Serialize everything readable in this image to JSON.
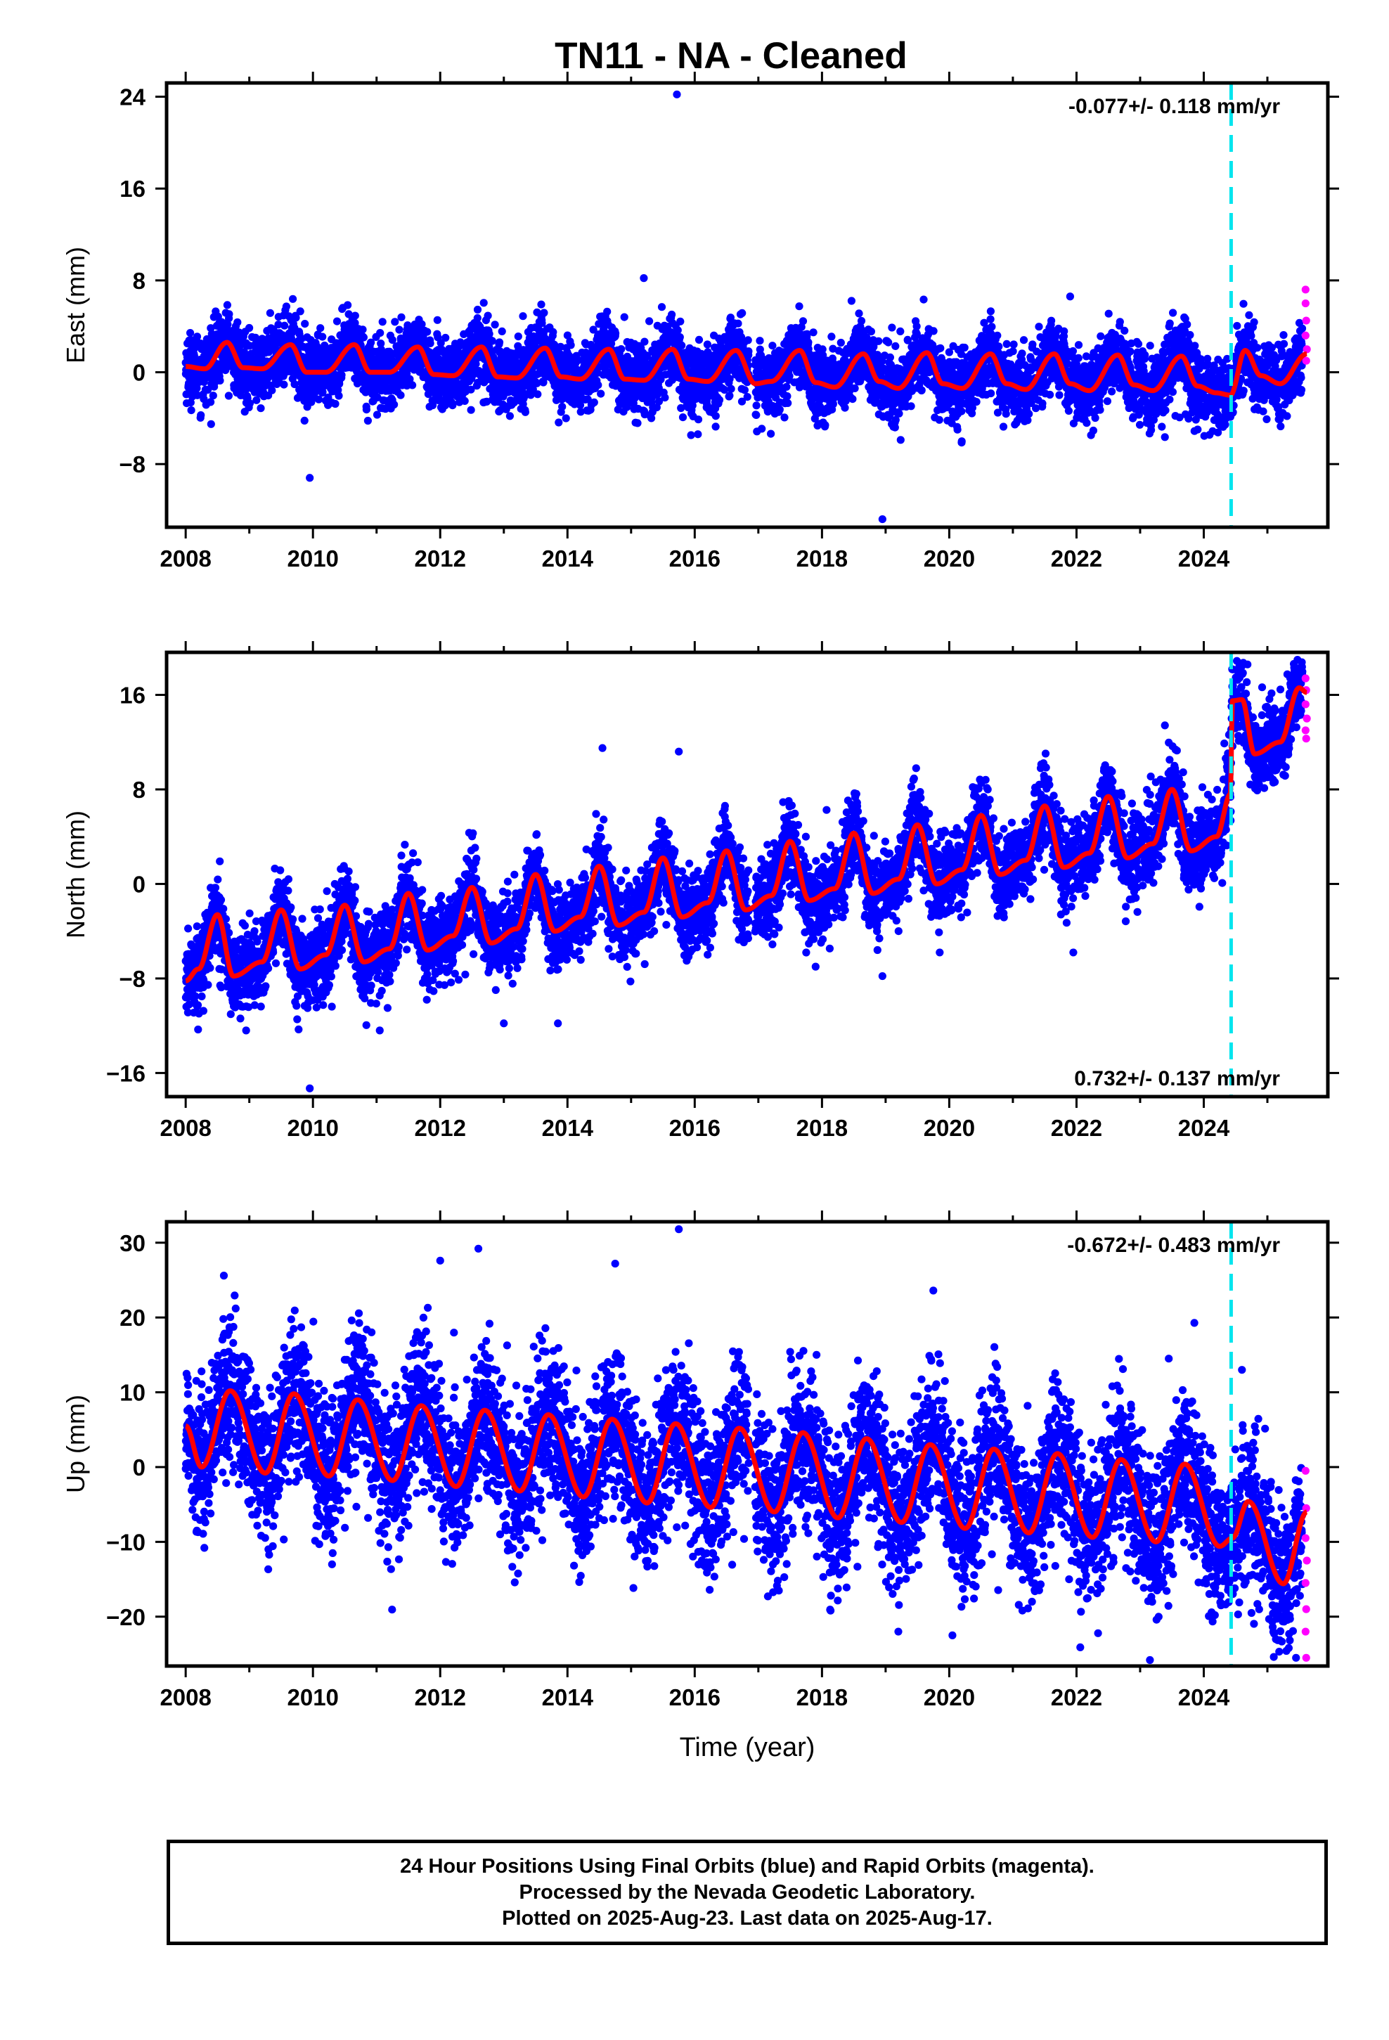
{
  "page": {
    "title": "TN11  - NA - Cleaned"
  },
  "colors": {
    "final_orbits": "#0000ff",
    "rapid_orbits": "#ff00ff",
    "model_fit": "#ff0000",
    "event_line": "#00e5ee",
    "frame": "#000000"
  },
  "footer": {
    "line1": "24 Hour Positions Using Final Orbits (blue) and Rapid Orbits (magenta).",
    "line2": "Processed by the Nevada Geodetic Laboratory.",
    "line3": "Plotted on 2025-Aug-23. Last data on 2025-Aug-17."
  },
  "chart_data": [
    {
      "type": "scatter",
      "ylabel": "East (mm)",
      "xlabel": "",
      "xlim": [
        2007.7,
        2025.95
      ],
      "ylim": [
        -13.5,
        25.2
      ],
      "x_ticks": [
        2008,
        2010,
        2012,
        2014,
        2016,
        2018,
        2020,
        2022,
        2024
      ],
      "y_ticks": [
        -8,
        0,
        8,
        16,
        24
      ],
      "y_tick_labels": [
        "−8",
        "0",
        "8",
        "16",
        "24"
      ],
      "x_minor_tick_step": 1,
      "grid": false,
      "velocity_label": "-0.077+/- 0.118 mm/yr",
      "velocity_label_position": "top-right",
      "event_line_x": 2024.43,
      "data_span": [
        2008.0,
        2025.62
      ],
      "rapid_orbits_start": 2025.55,
      "series": [
        {
          "role": "model_fit",
          "seasonal": [
            [
              2008.0,
              0.5
            ],
            [
              2008.3,
              0.3
            ],
            [
              2008.65,
              2.6
            ],
            [
              2008.9,
              0.4
            ],
            [
              2009.2,
              0.3
            ],
            [
              2009.65,
              2.4
            ],
            [
              2009.9,
              0.0
            ],
            [
              2010.2,
              0.0
            ],
            [
              2010.65,
              2.4
            ],
            [
              2010.9,
              0.0
            ],
            [
              2011.2,
              0.0
            ],
            [
              2011.65,
              2.2
            ],
            [
              2011.9,
              -0.2
            ],
            [
              2012.2,
              -0.3
            ],
            [
              2012.65,
              2.2
            ],
            [
              2012.9,
              -0.4
            ],
            [
              2013.2,
              -0.5
            ],
            [
              2013.65,
              2.1
            ],
            [
              2013.9,
              -0.4
            ],
            [
              2014.2,
              -0.6
            ],
            [
              2014.65,
              2.0
            ],
            [
              2014.9,
              -0.6
            ],
            [
              2015.2,
              -0.7
            ],
            [
              2015.65,
              2.0
            ],
            [
              2015.9,
              -0.6
            ],
            [
              2016.2,
              -0.8
            ],
            [
              2016.65,
              1.9
            ],
            [
              2016.95,
              -1.0
            ],
            [
              2017.2,
              -0.8
            ],
            [
              2017.65,
              1.9
            ],
            [
              2017.9,
              -0.9
            ],
            [
              2018.2,
              -1.3
            ],
            [
              2018.65,
              1.6
            ],
            [
              2018.9,
              -0.8
            ],
            [
              2019.2,
              -1.4
            ],
            [
              2019.65,
              1.7
            ],
            [
              2019.9,
              -1.0
            ],
            [
              2020.2,
              -1.4
            ],
            [
              2020.65,
              1.6
            ],
            [
              2020.9,
              -1.0
            ],
            [
              2021.2,
              -1.5
            ],
            [
              2021.65,
              1.6
            ],
            [
              2021.9,
              -1.0
            ],
            [
              2022.2,
              -1.6
            ],
            [
              2022.65,
              1.5
            ],
            [
              2022.9,
              -1.1
            ],
            [
              2023.2,
              -1.6
            ],
            [
              2023.65,
              1.4
            ],
            [
              2023.9,
              -1.2
            ],
            [
              2024.2,
              -1.8
            ],
            [
              2024.42,
              -2.0
            ],
            [
              2024.65,
              1.9
            ],
            [
              2024.9,
              -0.3
            ],
            [
              2025.2,
              -1.0
            ],
            [
              2025.62,
              1.6
            ]
          ]
        },
        {
          "role": "final_orbits",
          "scatter_amplitude": 1.5
        },
        {
          "role": "outliers",
          "points": [
            [
              2015.72,
              24.2
            ],
            [
              2009.95,
              -9.2
            ],
            [
              2018.95,
              -12.8
            ],
            [
              2021.9,
              6.6
            ],
            [
              2015.2,
              8.2
            ],
            [
              2016.05,
              -5.4
            ]
          ]
        },
        {
          "role": "rapid_orbits",
          "points": [
            [
              2025.6,
              7.2
            ],
            [
              2025.6,
              6.0
            ],
            [
              2025.61,
              4.5
            ],
            [
              2025.6,
              3.2
            ],
            [
              2025.62,
              2.0
            ],
            [
              2025.61,
              1.0
            ]
          ]
        }
      ]
    },
    {
      "type": "scatter",
      "ylabel": "North (mm)",
      "xlabel": "",
      "xlim": [
        2007.7,
        2025.95
      ],
      "ylim": [
        -18.0,
        19.6
      ],
      "x_ticks": [
        2008,
        2010,
        2012,
        2014,
        2016,
        2018,
        2020,
        2022,
        2024
      ],
      "y_ticks": [
        -16,
        -8,
        0,
        8,
        16
      ],
      "y_tick_labels": [
        "−16",
        "−8",
        "0",
        "8",
        "16"
      ],
      "x_minor_tick_step": 1,
      "grid": false,
      "velocity_label": "0.732+/- 0.137 mm/yr",
      "velocity_label_position": "bottom-right",
      "event_line_x": 2024.43,
      "data_span": [
        2008.0,
        2025.62
      ],
      "rapid_orbits_start": 2025.55,
      "series": [
        {
          "role": "model_fit",
          "seasonal": [
            [
              2008.0,
              -8.2
            ],
            [
              2008.2,
              -7.2
            ],
            [
              2008.5,
              -2.6
            ],
            [
              2008.75,
              -7.8
            ],
            [
              2009.2,
              -6.6
            ],
            [
              2009.5,
              -2.2
            ],
            [
              2009.8,
              -7.2
            ],
            [
              2010.2,
              -6.0
            ],
            [
              2010.5,
              -1.8
            ],
            [
              2010.8,
              -6.6
            ],
            [
              2011.2,
              -5.5
            ],
            [
              2011.5,
              -0.8
            ],
            [
              2011.8,
              -5.6
            ],
            [
              2012.2,
              -4.4
            ],
            [
              2012.5,
              -0.3
            ],
            [
              2012.8,
              -5.0
            ],
            [
              2013.2,
              -3.8
            ],
            [
              2013.5,
              0.8
            ],
            [
              2013.8,
              -4.0
            ],
            [
              2014.2,
              -2.8
            ],
            [
              2014.5,
              1.5
            ],
            [
              2014.8,
              -3.5
            ],
            [
              2015.2,
              -2.4
            ],
            [
              2015.5,
              2.2
            ],
            [
              2015.8,
              -2.8
            ],
            [
              2016.2,
              -1.6
            ],
            [
              2016.5,
              2.8
            ],
            [
              2016.8,
              -2.2
            ],
            [
              2017.2,
              -1.0
            ],
            [
              2017.5,
              3.6
            ],
            [
              2017.8,
              -1.4
            ],
            [
              2018.2,
              -0.4
            ],
            [
              2018.5,
              4.3
            ],
            [
              2018.8,
              -0.8
            ],
            [
              2019.2,
              0.4
            ],
            [
              2019.5,
              5.0
            ],
            [
              2019.8,
              0.0
            ],
            [
              2020.2,
              1.2
            ],
            [
              2020.5,
              5.8
            ],
            [
              2020.8,
              0.8
            ],
            [
              2021.2,
              2.0
            ],
            [
              2021.5,
              6.6
            ],
            [
              2021.8,
              1.4
            ],
            [
              2022.2,
              2.6
            ],
            [
              2022.5,
              7.4
            ],
            [
              2022.8,
              2.2
            ],
            [
              2023.2,
              3.4
            ],
            [
              2023.5,
              8.0
            ],
            [
              2023.8,
              2.8
            ],
            [
              2024.2,
              4.0
            ],
            [
              2024.42,
              7.6
            ],
            [
              2024.45,
              15.5
            ],
            [
              2024.6,
              15.6
            ],
            [
              2024.8,
              11.0
            ],
            [
              2025.2,
              12.0
            ],
            [
              2025.5,
              16.6
            ],
            [
              2025.62,
              16.2
            ]
          ]
        },
        {
          "role": "final_orbits",
          "scatter_amplitude": 1.7
        },
        {
          "role": "outliers",
          "points": [
            [
              2014.55,
              11.5
            ],
            [
              2015.75,
              11.2
            ],
            [
              2009.95,
              -17.3
            ],
            [
              2011.05,
              -12.4
            ],
            [
              2013.0,
              -11.8
            ],
            [
              2013.85,
              -11.8
            ],
            [
              2017.9,
              -7.0
            ],
            [
              2018.95,
              -7.8
            ],
            [
              2021.95,
              -5.8
            ],
            [
              2019.85,
              -5.8
            ],
            [
              2008.95,
              -12.4
            ]
          ]
        },
        {
          "role": "rapid_orbits",
          "points": [
            [
              2025.6,
              17.4
            ],
            [
              2025.61,
              16.4
            ],
            [
              2025.6,
              15.2
            ],
            [
              2025.62,
              14.0
            ],
            [
              2025.6,
              13.0
            ],
            [
              2025.61,
              12.3
            ]
          ]
        }
      ]
    },
    {
      "type": "scatter",
      "ylabel": "Up (mm)",
      "xlabel": "Time (year)",
      "xlim": [
        2007.7,
        2025.95
      ],
      "ylim": [
        -26.6,
        32.8
      ],
      "x_ticks": [
        2008,
        2010,
        2012,
        2014,
        2016,
        2018,
        2020,
        2022,
        2024
      ],
      "y_ticks": [
        -20,
        -10,
        0,
        10,
        20,
        30
      ],
      "y_tick_labels": [
        "−20",
        "−10",
        "0",
        "10",
        "20",
        "30"
      ],
      "x_minor_tick_step": 1,
      "grid": false,
      "velocity_label": "-0.672+/- 0.483 mm/yr",
      "velocity_label_position": "top-right",
      "event_line_x": 2024.43,
      "data_span": [
        2008.0,
        2025.62
      ],
      "rapid_orbits_start": 2025.55,
      "series": [
        {
          "role": "model_fit",
          "seasonal": [
            [
              2008.0,
              5.5
            ],
            [
              2008.25,
              0.0
            ],
            [
              2008.7,
              10.2
            ],
            [
              2009.25,
              -0.8
            ],
            [
              2009.7,
              9.8
            ],
            [
              2010.25,
              -1.2
            ],
            [
              2010.7,
              9.0
            ],
            [
              2011.25,
              -1.8
            ],
            [
              2011.7,
              8.2
            ],
            [
              2012.25,
              -2.6
            ],
            [
              2012.7,
              7.6
            ],
            [
              2013.25,
              -3.2
            ],
            [
              2013.7,
              7.0
            ],
            [
              2014.25,
              -4.0
            ],
            [
              2014.7,
              6.4
            ],
            [
              2015.25,
              -4.8
            ],
            [
              2015.7,
              5.8
            ],
            [
              2016.25,
              -5.4
            ],
            [
              2016.7,
              5.2
            ],
            [
              2017.25,
              -6.0
            ],
            [
              2017.7,
              4.6
            ],
            [
              2018.25,
              -6.8
            ],
            [
              2018.7,
              3.8
            ],
            [
              2019.25,
              -7.4
            ],
            [
              2019.7,
              3.0
            ],
            [
              2020.25,
              -8.2
            ],
            [
              2020.7,
              2.4
            ],
            [
              2021.25,
              -8.8
            ],
            [
              2021.7,
              1.8
            ],
            [
              2022.25,
              -9.4
            ],
            [
              2022.7,
              1.0
            ],
            [
              2023.25,
              -10.0
            ],
            [
              2023.7,
              0.4
            ],
            [
              2024.25,
              -10.6
            ],
            [
              2024.45,
              -9.5
            ],
            [
              2024.7,
              -4.6
            ],
            [
              2025.25,
              -15.6
            ],
            [
              2025.62,
              -6.0
            ]
          ]
        },
        {
          "role": "final_orbits",
          "scatter_amplitude": 5.0
        },
        {
          "role": "outliers",
          "points": [
            [
              2015.75,
              31.8
            ],
            [
              2012.0,
              27.6
            ],
            [
              2012.6,
              29.2
            ],
            [
              2014.75,
              27.2
            ],
            [
              2008.6,
              25.6
            ],
            [
              2019.75,
              23.6
            ],
            [
              2010.3,
              -13.0
            ],
            [
              2009.3,
              -11.0
            ],
            [
              2020.05,
              -22.5
            ],
            [
              2019.2,
              -22.0
            ],
            [
              2025.45,
              -25.5
            ],
            [
              2017.5,
              15.4
            ],
            [
              2023.45,
              14.5
            ],
            [
              2024.6,
              13.0
            ]
          ]
        },
        {
          "role": "rapid_orbits",
          "points": [
            [
              2025.6,
              -0.5
            ],
            [
              2025.61,
              -5.5
            ],
            [
              2025.6,
              -9.5
            ],
            [
              2025.62,
              -12.5
            ],
            [
              2025.6,
              -15.5
            ],
            [
              2025.61,
              -19.0
            ],
            [
              2025.6,
              -22.0
            ],
            [
              2025.61,
              -25.5
            ]
          ]
        }
      ]
    }
  ]
}
